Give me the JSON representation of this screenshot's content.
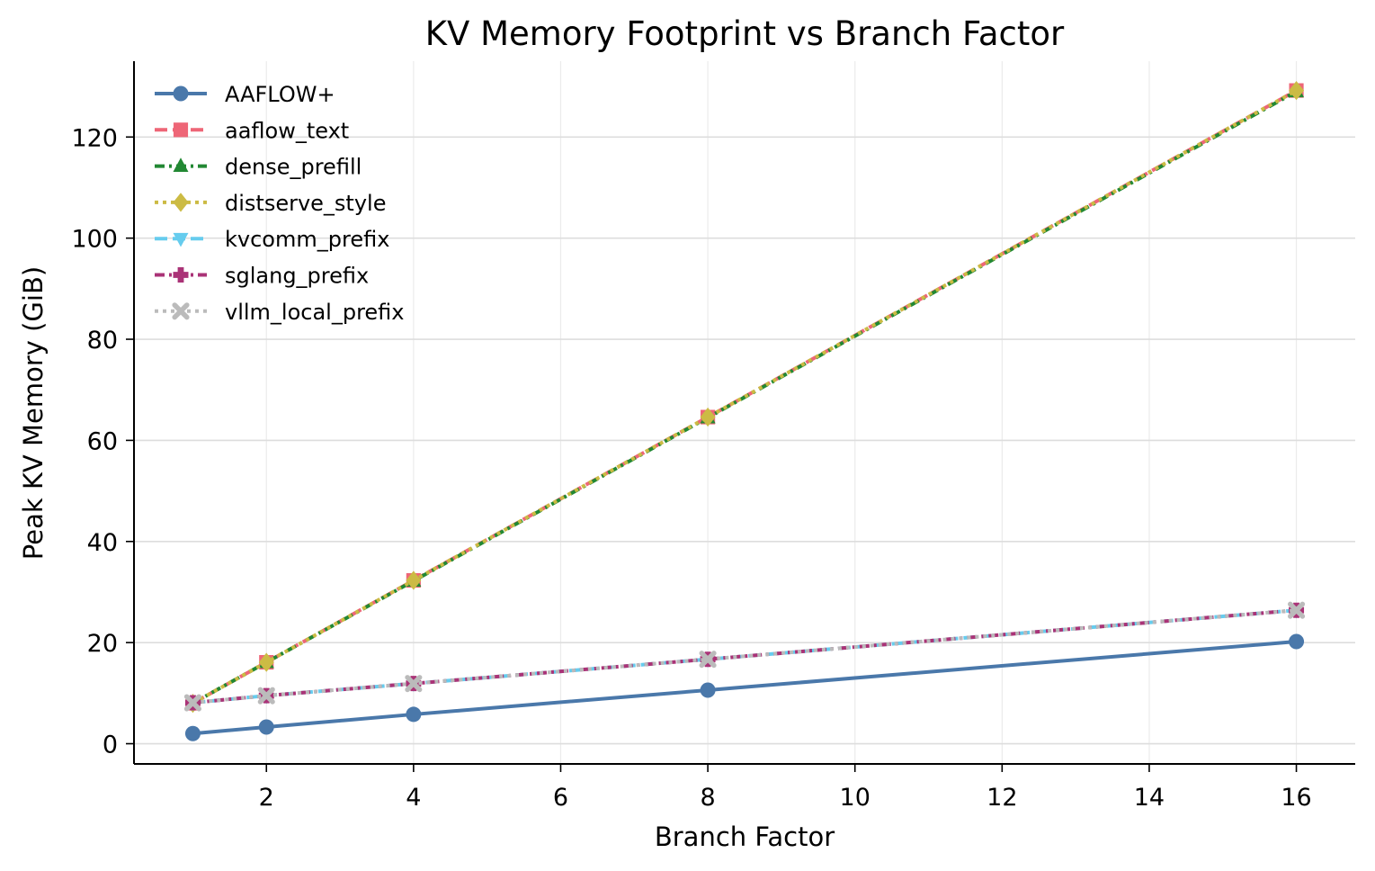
{
  "chart_data": {
    "type": "line",
    "title": "KV Memory Footprint vs Branch Factor",
    "xlabel": "Branch Factor",
    "ylabel": "Peak KV Memory (GiB)",
    "x": [
      1,
      2,
      4,
      8,
      16
    ],
    "xlim": [
      0.2,
      16.8
    ],
    "ylim": [
      -4,
      135
    ],
    "xticks": [
      2,
      4,
      6,
      8,
      10,
      12,
      14,
      16
    ],
    "yticks": [
      0,
      20,
      40,
      60,
      80,
      100,
      120
    ],
    "grid": true,
    "legend_position": "top-left",
    "series": [
      {
        "name": "AAFLOW+",
        "values": [
          2.0,
          3.3,
          5.8,
          10.6,
          20.2
        ],
        "color": "#4a78aa",
        "marker": "circle",
        "dash": "solid"
      },
      {
        "name": "aaflow_text",
        "values": [
          8.0,
          16.1,
          32.3,
          64.6,
          129.2
        ],
        "color": "#ee6677",
        "marker": "square",
        "dash": "dashed"
      },
      {
        "name": "dense_prefill",
        "values": [
          8.0,
          16.1,
          32.2,
          64.5,
          129.0
        ],
        "color": "#228833",
        "marker": "triangle-up",
        "dash": "dashdot"
      },
      {
        "name": "distserve_style",
        "values": [
          8.0,
          16.1,
          32.3,
          64.6,
          129.2
        ],
        "color": "#ccbb44",
        "marker": "diamond",
        "dash": "dotted"
      },
      {
        "name": "kvcomm_prefix",
        "values": [
          8.1,
          9.5,
          11.9,
          16.7,
          26.4
        ],
        "color": "#66ccee",
        "marker": "triangle-down",
        "dash": "dashed"
      },
      {
        "name": "sglang_prefix",
        "values": [
          8.1,
          9.5,
          11.9,
          16.7,
          26.4
        ],
        "color": "#aa3377",
        "marker": "plus",
        "dash": "dashdot"
      },
      {
        "name": "vllm_local_prefix",
        "values": [
          8.1,
          9.5,
          11.9,
          16.7,
          26.4
        ],
        "color": "#bbbbbb",
        "marker": "x",
        "dash": "dotted"
      }
    ]
  }
}
